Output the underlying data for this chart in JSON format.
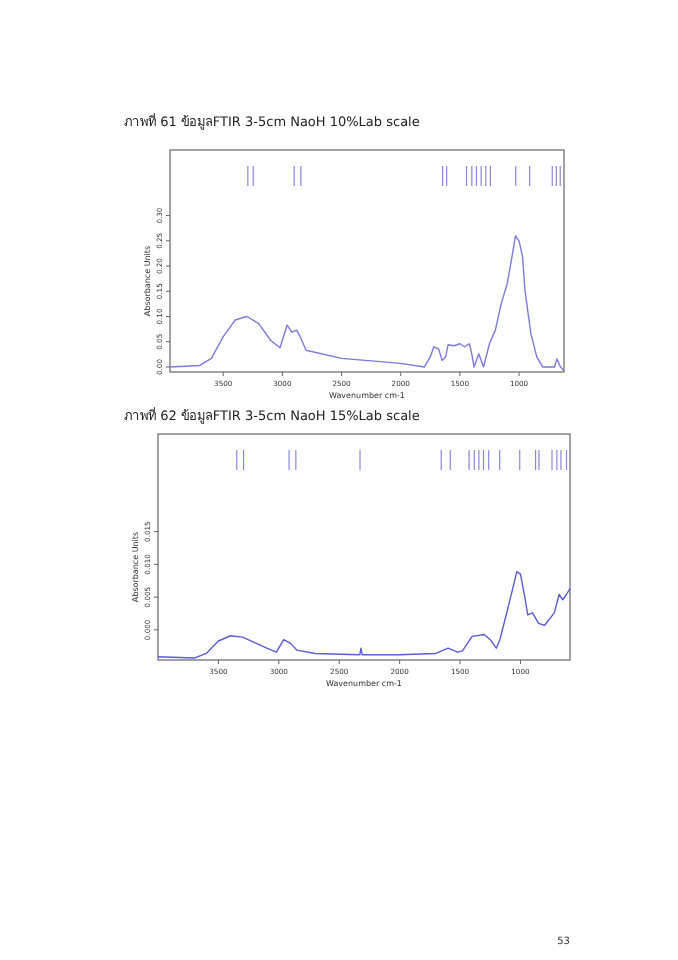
{
  "chart_data": [
    {
      "type": "line",
      "title": "ภาพที่ 61 ข้อมูลFTIR 3-5cm NaoH 10%Lab scale",
      "xlabel": "Wavenumber cm-1",
      "ylabel": "Absorbance Units",
      "xlim": [
        3950,
        620
      ],
      "ylim": [
        -0.01,
        0.43
      ],
      "xticks": [
        3500,
        3000,
        2500,
        2000,
        1500,
        1000
      ],
      "yticks": [
        {
          "value": 0,
          "label": "0.00"
        },
        {
          "value": 0.05,
          "label": "0.05"
        },
        {
          "value": 0.1,
          "label": "0.10"
        },
        {
          "value": 0.15,
          "label": "0.15"
        },
        {
          "value": 0.2,
          "label": "0.20"
        },
        {
          "value": 0.25,
          "label": "0.25"
        },
        {
          "value": 0.3,
          "label": "0.30"
        }
      ],
      "series": [
        {
          "color": "#7b7bdc",
          "x": [
            3950,
            3700,
            3600,
            3500,
            3400,
            3300,
            3200,
            3100,
            3020,
            2960,
            2920,
            2880,
            2850,
            2800,
            2500,
            2000,
            1800,
            1750,
            1720,
            1680,
            1650,
            1620,
            1600,
            1550,
            1500,
            1460,
            1420,
            1400,
            1380,
            1340,
            1300,
            1250,
            1200,
            1150,
            1100,
            1060,
            1030,
            1000,
            970,
            950,
            900,
            850,
            800,
            700,
            680,
            650,
            620
          ],
          "values": [
            0,
            0.003,
            0.017,
            0.06,
            0.093,
            0.1,
            0.086,
            0.053,
            0.038,
            0.083,
            0.069,
            0.073,
            0.06,
            0.033,
            0.017,
            0.007,
            0,
            0.02,
            0.04,
            0.036,
            0.013,
            0.02,
            0.044,
            0.042,
            0.046,
            0.04,
            0.046,
            0.026,
            0,
            0.026,
            0,
            0.046,
            0.073,
            0.126,
            0.165,
            0.218,
            0.26,
            0.25,
            0.218,
            0.152,
            0.066,
            0.02,
            0,
            0,
            0.016,
            0,
            -0.007
          ]
        }
      ],
      "ref_lines": [
        {
          "axis": "x",
          "value": 3292,
          "color": "#8888dd"
        },
        {
          "axis": "x",
          "value": 3247,
          "color": "#8888dd"
        },
        {
          "axis": "x",
          "value": 2900,
          "color": "#8888dd"
        },
        {
          "axis": "x",
          "value": 2844,
          "color": "#8888dd"
        },
        {
          "axis": "x",
          "value": 1646,
          "color": "#8888dd"
        },
        {
          "axis": "x",
          "value": 1612,
          "color": "#8888dd"
        },
        {
          "axis": "x",
          "value": 1444,
          "color": "#8888dd"
        },
        {
          "axis": "x",
          "value": 1399,
          "color": "#8888dd"
        },
        {
          "axis": "x",
          "value": 1360,
          "color": "#8888dd"
        },
        {
          "axis": "x",
          "value": 1320,
          "color": "#8888dd"
        },
        {
          "axis": "x",
          "value": 1281,
          "color": "#8888dd"
        },
        {
          "axis": "x",
          "value": 1242,
          "color": "#8888dd"
        },
        {
          "axis": "x",
          "value": 1028,
          "color": "#8888dd"
        },
        {
          "axis": "x",
          "value": 910,
          "color": "#8888dd"
        },
        {
          "axis": "x",
          "value": 719,
          "color": "#8888dd"
        },
        {
          "axis": "x",
          "value": 685,
          "color": "#8888dd"
        },
        {
          "axis": "x",
          "value": 652,
          "color": "#8888dd"
        }
      ]
    },
    {
      "type": "line",
      "title": "ภาพที่ 62 ข้อมูลFTIR 3-5cm NaoH 15%Lab scale",
      "xlabel": "Wavenumber cm-1",
      "ylabel": "Absorbance Units",
      "xlim": [
        4000,
        590
      ],
      "ylim": [
        -0.0046,
        0.0299
      ],
      "xticks": [
        3500,
        3000,
        2500,
        2000,
        1500,
        1000
      ],
      "yticks": [
        {
          "value": 0,
          "label": "0.000"
        },
        {
          "value": 0.005,
          "label": "0.005"
        },
        {
          "value": 0.01,
          "label": "0.010"
        },
        {
          "value": 0.015,
          "label": "0.015"
        }
      ],
      "series": [
        {
          "color": "#5c5cd6",
          "x": [
            4000,
            3700,
            3600,
            3500,
            3400,
            3300,
            3100,
            3020,
            2960,
            2900,
            2850,
            2700,
            2330,
            2320,
            2310,
            2000,
            1700,
            1600,
            1520,
            1480,
            1400,
            1300,
            1250,
            1200,
            1170,
            1100,
            1030,
            1000,
            960,
            940,
            900,
            850,
            800,
            720,
            680,
            650,
            620,
            590
          ],
          "values": [
            -0.0041,
            -0.0043,
            -0.0036,
            -0.0017,
            -0.0009,
            -0.0011,
            -0.0028,
            -0.0034,
            -0.0015,
            -0.0021,
            -0.0031,
            -0.0036,
            -0.0038,
            -0.0028,
            -0.0038,
            -0.0038,
            -0.0036,
            -0.0028,
            -0.0034,
            -0.0032,
            -0.001,
            -0.0007,
            -0.0015,
            -0.0028,
            -0.0015,
            0.0036,
            0.0089,
            0.0085,
            0.0046,
            0.0023,
            0.0026,
            0.001,
            0.0007,
            0.0026,
            0.0054,
            0.0046,
            0.0054,
            0.0063
          ]
        }
      ],
      "ref_lines": [
        {
          "axis": "x",
          "value": 3348,
          "color": "#8888dd"
        },
        {
          "axis": "x",
          "value": 3292,
          "color": "#8888dd"
        },
        {
          "axis": "x",
          "value": 2915,
          "color": "#8888dd"
        },
        {
          "axis": "x",
          "value": 2859,
          "color": "#8888dd"
        },
        {
          "axis": "x",
          "value": 2328,
          "color": "#8888dd"
        },
        {
          "axis": "x",
          "value": 1656,
          "color": "#8888dd"
        },
        {
          "axis": "x",
          "value": 1581,
          "color": "#8888dd"
        },
        {
          "axis": "x",
          "value": 1425,
          "color": "#8888dd"
        },
        {
          "axis": "x",
          "value": 1382,
          "color": "#8888dd"
        },
        {
          "axis": "x",
          "value": 1344,
          "color": "#8888dd"
        },
        {
          "axis": "x",
          "value": 1306,
          "color": "#8888dd"
        },
        {
          "axis": "x",
          "value": 1263,
          "color": "#8888dd"
        },
        {
          "axis": "x",
          "value": 1172,
          "color": "#8888dd"
        },
        {
          "axis": "x",
          "value": 1006,
          "color": "#8888dd"
        },
        {
          "axis": "x",
          "value": 875,
          "color": "#8888dd"
        },
        {
          "axis": "x",
          "value": 847,
          "color": "#8888dd"
        },
        {
          "axis": "x",
          "value": 739,
          "color": "#8888dd"
        },
        {
          "axis": "x",
          "value": 699,
          "color": "#8888dd"
        },
        {
          "axis": "x",
          "value": 665,
          "color": "#8888dd"
        },
        {
          "axis": "x",
          "value": 619,
          "color": "#8888dd"
        }
      ],
      "annotations": [
        "53"
      ]
    }
  ]
}
